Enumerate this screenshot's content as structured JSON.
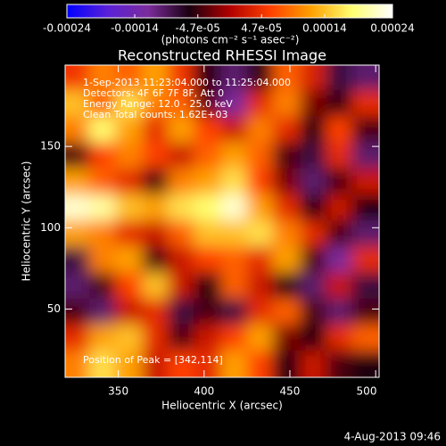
{
  "chart_data": {
    "type": "heatmap",
    "title": "Reconstructed RHESSI Image",
    "xlabel": "Heliocentric X (arcsec)",
    "ylabel": "Heliocentric Y (arcsec)",
    "colorbar_label": "(photons cm⁻² s⁻¹ asec⁻²)",
    "annotations": [
      "1-Sep-2013 11:23:04.000 to 11:25:04.000",
      "Detectors: 4F 6F 7F 8F, Att 0",
      "Energy Range: 12.0 - 25.0 keV",
      "Clean    Total counts: 1.62E+03",
      "Position of Peak = [342,114]"
    ],
    "footer": "4-Aug-2013 09:46",
    "xlim": [
      319,
      502
    ],
    "ylim": [
      8,
      200
    ],
    "xticks": [
      350,
      400,
      450,
      500
    ],
    "yticks": [
      50,
      100,
      150
    ],
    "zlim": [
      -0.00024,
      0.00024
    ],
    "zticks": [
      -0.00024,
      -0.00014,
      {
        "value": -4.7e-05,
        "label": "-4.7e-05"
      },
      {
        "value": 4.7e-05,
        "label": "4.7e-05"
      },
      0.00014,
      0.00024
    ],
    "colormap": [
      "#0000ff",
      "#5a20d8",
      "#7b2c9c",
      "#1a0010",
      "#b00000",
      "#ff4000",
      "#ffa000",
      "#ffff70",
      "#ffffff"
    ],
    "x": [
      326,
      341,
      356,
      372,
      387,
      402,
      418,
      433,
      448,
      464,
      479,
      494
    ],
    "y": [
      192,
      176,
      160,
      144,
      128,
      112,
      96,
      80,
      64,
      48,
      32,
      16
    ],
    "z": [
      [
        5e-05,
        0.0001,
        8e-05,
        0.00012,
        5e-05,
        -5e-05,
        -0.0001,
        -5e-05,
        8e-05,
        3e-05,
        -8e-05,
        -0.0001
      ],
      [
        0.00014,
        8e-05,
        0.00016,
        0.0001,
        8e-05,
        -3e-05,
        -0.00012,
        4e-05,
        0.0001,
        -2e-05,
        -5e-05,
        4e-05
      ],
      [
        0.0001,
        0.00018,
        0.00012,
        4e-05,
        0.00012,
        6e-05,
        2e-05,
        0.0001,
        4e-05,
        -6e-05,
        6e-05,
        -4e-05
      ],
      [
        -4e-05,
        6e-05,
        0.0001,
        6e-05,
        2e-05,
        8e-05,
        0.00012,
        8e-05,
        -4e-05,
        -8e-05,
        4e-05,
        -0.0001
      ],
      [
        0.00012,
        8e-05,
        4e-05,
        -4e-05,
        0.0001,
        0.00012,
        0.00016,
        6e-05,
        -2e-05,
        -0.0001,
        -4e-05,
        2e-05
      ],
      [
        0.00022,
        0.0002,
        0.00014,
        0.00012,
        0.00016,
        0.00018,
        0.00022,
        0.00012,
        4e-05,
        -6e-05,
        2e-05,
        -6e-05
      ],
      [
        0.00012,
        0.0001,
        4e-05,
        2e-05,
        8e-05,
        0.00014,
        0.00014,
        0.00016,
        0.0001,
        4e-05,
        -4e-05,
        -0.0001
      ],
      [
        -8e-05,
        0.0001,
        0.00012,
        -4e-05,
        2e-05,
        6e-05,
        8e-05,
        4e-05,
        0.00012,
        -4e-05,
        -0.00012,
        4e-05
      ],
      [
        -0.0001,
        -4e-05,
        6e-05,
        0.00014,
        2e-05,
        -6e-05,
        8e-05,
        2e-05,
        -6e-05,
        -0.0001,
        2e-05,
        -8e-05
      ],
      [
        -4e-05,
        -0.0001,
        2e-05,
        4e-05,
        -8e-05,
        -4e-05,
        -8e-05,
        4e-05,
        8e-05,
        -4e-05,
        -0.0001,
        -4e-05
      ],
      [
        4e-05,
        0.00012,
        0.00014,
        4e-05,
        -4e-05,
        2e-05,
        6e-05,
        0.00012,
        -2e-05,
        -6e-05,
        4e-05,
        8e-05
      ],
      [
        0.0001,
        0.00016,
        0.00012,
        2e-05,
        6e-05,
        4e-05,
        0.00012,
        6e-05,
        -6e-05,
        2e-05,
        -4e-05,
        -6e-05
      ]
    ]
  }
}
